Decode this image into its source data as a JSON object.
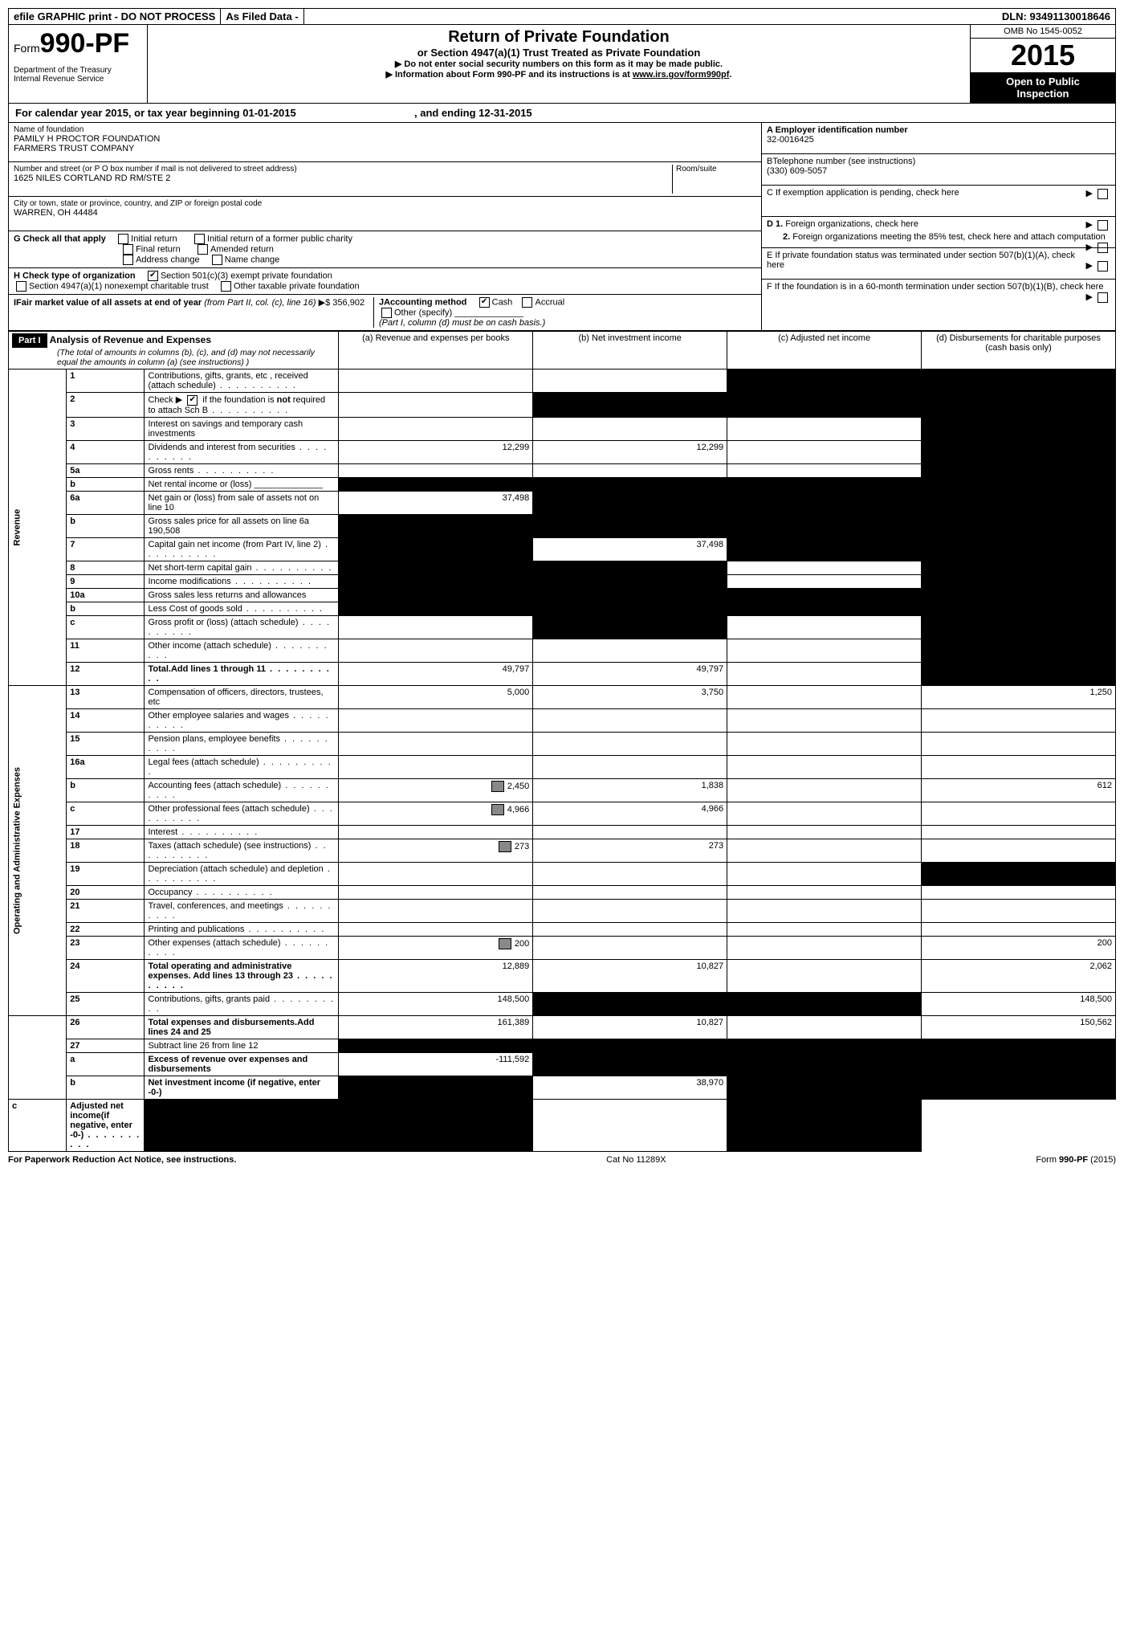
{
  "topbar": {
    "efile": "efile GRAPHIC print - DO NOT PROCESS",
    "asfiled": "As Filed Data -",
    "dln_label": "DLN:",
    "dln": "93491130018646"
  },
  "header": {
    "form_word": "Form",
    "form_num": "990-PF",
    "dept1": "Department of the Treasury",
    "dept2": "Internal Revenue Service",
    "title": "Return of Private Foundation",
    "subtitle": "or Section 4947(a)(1) Trust Treated as Private Foundation",
    "warn": "Do not enter social security numbers on this form as it may be made public.",
    "info_prefix": "Information about Form 990-PF and its instructions is at ",
    "info_link": "www.irs.gov/form990pf",
    "info_suffix": ".",
    "omb": "OMB No  1545-0052",
    "year": "2015",
    "open1": "Open to Public",
    "open2": "Inspection"
  },
  "calyear": {
    "prefix": "For calendar year 2015, or tax year beginning ",
    "begin": "01-01-2015",
    "mid": " , and ending ",
    "end": "12-31-2015"
  },
  "left_info": {
    "name_label": "Name of foundation",
    "name1": "PAMILY H PROCTOR FOUNDATION",
    "name2": "FARMERS TRUST COMPANY",
    "addr_label": "Number and street (or P O  box number if mail is not delivered to street address)",
    "room_label": "Room/suite",
    "addr": "1625 NILES CORTLAND RD RM/STE 2",
    "city_label": "City or town, state or province, country, and ZIP or foreign postal code",
    "city": "WARREN, OH  44484",
    "g_label": "G Check all that apply",
    "g_opts": [
      "Initial return",
      "Initial return of a former public charity",
      "Final return",
      "Amended return",
      "Address change",
      "Name change"
    ],
    "h_label": "H Check type of organization",
    "h_501": "Section 501(c)(3) exempt private foundation",
    "h_4947": "Section 4947(a)(1) nonexempt charitable trust",
    "h_other": "Other taxable private foundation",
    "i_label": "IFair market value of all assets at end of year ",
    "i_from": "(from Part II, col. (c), line 16)",
    "i_arrow_dollar": "▶$ ",
    "i_value": "356,902",
    "j_label": "JAccounting method",
    "j_cash": "Cash",
    "j_accrual": "Accrual",
    "j_other": "Other (specify)",
    "j_note": "(Part I, column (d) must be on cash basis.)"
  },
  "right_info": {
    "a_label": "A Employer identification number",
    "a_val": "32-0016425",
    "b_label": "BTelephone number (see instructions)",
    "b_val": "(330) 609-5057",
    "c_label": "C  If exemption application is pending, check here",
    "d1_label": "D 1.  Foreign organizations, check here",
    "d2_label": "2.  Foreign organizations meeting the 85% test, check here and attach computation",
    "e_label": "E  If private foundation status was terminated under section 507(b)(1)(A), check here",
    "f_label": "F  If the foundation is in a 60-month termination under section 507(b)(1)(B), check here"
  },
  "part1": {
    "badge": "Part I",
    "title": "Analysis of Revenue and Expenses",
    "note": "(The total of amounts in columns (b), (c), and (d) may not necessarily equal the amounts in column (a) (see instructions) )",
    "col_a": "(a) Revenue and expenses per books",
    "col_b": "(b) Net investment income",
    "col_c": "(c) Adjusted net income",
    "col_d": "(d) Disbursements for charitable purposes (cash basis only)",
    "side_rev": "Revenue",
    "side_exp": "Operating and Administrative Expenses"
  },
  "rows": [
    {
      "n": "1",
      "d": "Contributions, gifts, grants, etc , received (attach schedule)",
      "a": "",
      "b": "",
      "c": "S",
      "dd": "S",
      "dots": true
    },
    {
      "n": "2",
      "d": "Check ▶ ☑ if the foundation is not required to attach Sch B",
      "a": "",
      "b": "S",
      "c": "S",
      "dd": "S",
      "dots": true,
      "checkbox": true
    },
    {
      "n": "3",
      "d": "Interest on savings and temporary cash investments",
      "a": "",
      "b": "",
      "c": "",
      "dd": "S"
    },
    {
      "n": "4",
      "d": "Dividends and interest from securities",
      "a": "12,299",
      "b": "12,299",
      "c": "",
      "dd": "S",
      "dots": true
    },
    {
      "n": "5a",
      "d": "Gross rents",
      "a": "",
      "b": "",
      "c": "",
      "dd": "S",
      "dots": true
    },
    {
      "n": "b",
      "d": "Net rental income or (loss) ______________",
      "a": "S",
      "b": "S",
      "c": "S",
      "dd": "S"
    },
    {
      "n": "6a",
      "d": "Net gain or (loss) from sale of assets not on line 10",
      "a": "37,498",
      "b": "S",
      "c": "S",
      "dd": "S"
    },
    {
      "n": "b",
      "d": "Gross sales price for all assets on line 6a                190,508",
      "a": "S",
      "b": "S",
      "c": "S",
      "dd": "S",
      "sub": true
    },
    {
      "n": "7",
      "d": "Capital gain net income (from Part IV, line 2)",
      "a": "S",
      "b": "37,498",
      "c": "S",
      "dd": "S",
      "dots": true
    },
    {
      "n": "8",
      "d": "Net short-term capital gain",
      "a": "S",
      "b": "S",
      "c": "",
      "dd": "S",
      "dots": true
    },
    {
      "n": "9",
      "d": "Income modifications",
      "a": "S",
      "b": "S",
      "c": "",
      "dd": "S",
      "dots": true
    },
    {
      "n": "10a",
      "d": "Gross sales less returns and allowances",
      "a": "S",
      "b": "S",
      "c": "S",
      "dd": "S"
    },
    {
      "n": "b",
      "d": "Less  Cost of goods sold",
      "a": "S",
      "b": "S",
      "c": "S",
      "dd": "S",
      "dots": true
    },
    {
      "n": "c",
      "d": "Gross profit or (loss) (attach schedule)",
      "a": "",
      "b": "S",
      "c": "",
      "dd": "S",
      "dots": true
    },
    {
      "n": "11",
      "d": "Other income (attach schedule)",
      "a": "",
      "b": "",
      "c": "",
      "dd": "S",
      "dots": true
    },
    {
      "n": "12",
      "d": "Total.Add lines 1 through 11",
      "a": "49,797",
      "b": "49,797",
      "c": "",
      "dd": "S",
      "bold": true,
      "dots": true
    },
    {
      "n": "13",
      "d": "Compensation of officers, directors, trustees, etc",
      "a": "5,000",
      "b": "3,750",
      "c": "",
      "dd": "1,250"
    },
    {
      "n": "14",
      "d": "Other employee salaries and wages",
      "a": "",
      "b": "",
      "c": "",
      "dd": "",
      "dots": true
    },
    {
      "n": "15",
      "d": "Pension plans, employee benefits",
      "a": "",
      "b": "",
      "c": "",
      "dd": "",
      "dots": true
    },
    {
      "n": "16a",
      "d": "Legal fees (attach schedule)",
      "a": "",
      "b": "",
      "c": "",
      "dd": "",
      "dots": true
    },
    {
      "n": "b",
      "d": "Accounting fees (attach schedule)",
      "a": "2,450",
      "b": "1,838",
      "c": "",
      "dd": "612",
      "dots": true,
      "icon": true
    },
    {
      "n": "c",
      "d": "Other professional fees (attach schedule)",
      "a": "4,966",
      "b": "4,966",
      "c": "",
      "dd": "",
      "dots": true,
      "icon": true
    },
    {
      "n": "17",
      "d": "Interest",
      "a": "",
      "b": "",
      "c": "",
      "dd": "",
      "dots": true
    },
    {
      "n": "18",
      "d": "Taxes (attach schedule) (see instructions)",
      "a": "273",
      "b": "273",
      "c": "",
      "dd": "",
      "dots": true,
      "icon": true
    },
    {
      "n": "19",
      "d": "Depreciation (attach schedule) and depletion",
      "a": "",
      "b": "",
      "c": "",
      "dd": "S",
      "dots": true
    },
    {
      "n": "20",
      "d": "Occupancy",
      "a": "",
      "b": "",
      "c": "",
      "dd": "",
      "dots": true
    },
    {
      "n": "21",
      "d": "Travel, conferences, and meetings",
      "a": "",
      "b": "",
      "c": "",
      "dd": "",
      "dots": true
    },
    {
      "n": "22",
      "d": "Printing and publications",
      "a": "",
      "b": "",
      "c": "",
      "dd": "",
      "dots": true
    },
    {
      "n": "23",
      "d": "Other expenses (attach schedule)",
      "a": "200",
      "b": "",
      "c": "",
      "dd": "200",
      "dots": true,
      "icon": true
    },
    {
      "n": "24",
      "d": "Total operating and administrative expenses. Add lines 13 through 23",
      "a": "12,889",
      "b": "10,827",
      "c": "",
      "dd": "2,062",
      "bold": true,
      "dots": true
    },
    {
      "n": "25",
      "d": "Contributions, gifts, grants paid",
      "a": "148,500",
      "b": "S",
      "c": "S",
      "dd": "148,500",
      "dots": true
    },
    {
      "n": "26",
      "d": "Total expenses and disbursements.Add lines 24 and 25",
      "a": "161,389",
      "b": "10,827",
      "c": "",
      "dd": "150,562",
      "bold": true
    },
    {
      "n": "27",
      "d": "Subtract line 26 from line 12",
      "a": "S",
      "b": "S",
      "c": "S",
      "dd": "S"
    },
    {
      "n": "a",
      "d": "Excess of revenue over expenses and disbursements",
      "a": "-111,592",
      "b": "S",
      "c": "S",
      "dd": "S",
      "bold": true
    },
    {
      "n": "b",
      "d": "Net investment income (if negative, enter -0-)",
      "a": "S",
      "b": "38,970",
      "c": "S",
      "dd": "S",
      "bold": true
    },
    {
      "n": "c",
      "d": "Adjusted net income(if negative, enter -0-)",
      "a": "S",
      "b": "S",
      "c": "",
      "dd": "S",
      "bold": true,
      "dots": true
    }
  ],
  "footer": {
    "left": "For Paperwork Reduction Act Notice, see instructions.",
    "mid": "Cat No 11289X",
    "right": "Form 990-PF (2015)"
  }
}
